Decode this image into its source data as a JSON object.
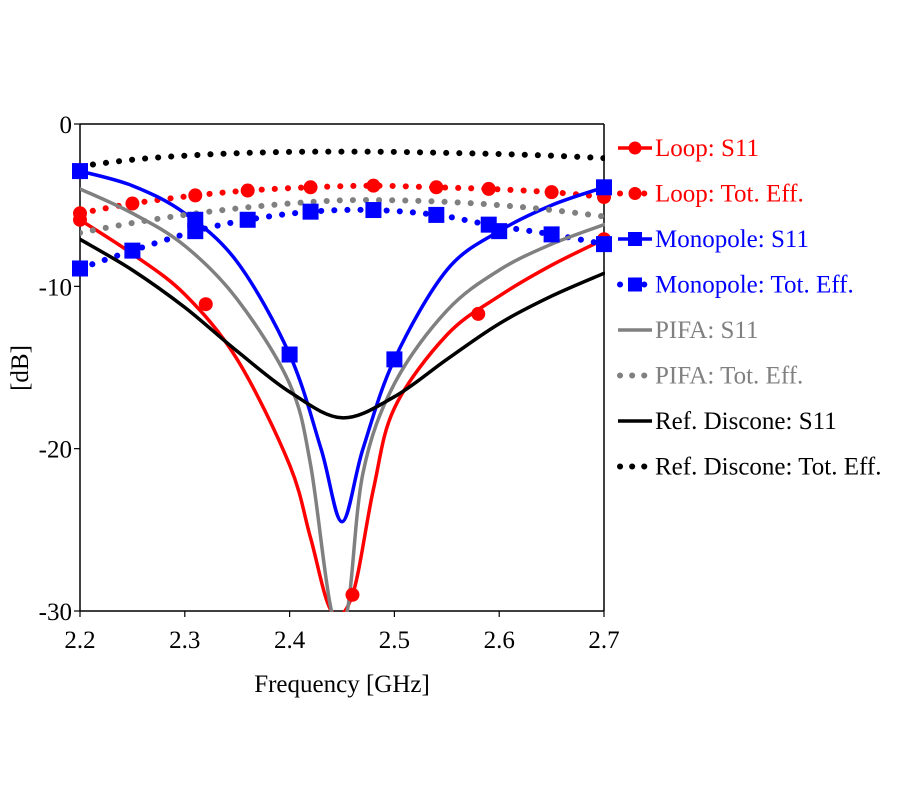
{
  "chart_data": {
    "type": "line",
    "title": "",
    "xlabel": "Frequency [GHz]",
    "ylabel": "[dB]",
    "xlim": [
      2.2,
      2.7
    ],
    "ylim": [
      -30,
      0
    ],
    "xticks": [
      "2.2",
      "2.3",
      "2.4",
      "2.5",
      "2.6",
      "2.7"
    ],
    "yticks": [
      "0",
      "-10",
      "-20",
      "-30"
    ],
    "grid": false,
    "legend_position": "right",
    "series": [
      {
        "name": "Loop: S11",
        "color": "#ff0000",
        "style": "solid",
        "marker": "circle",
        "x": [
          2.2,
          2.25,
          2.3,
          2.35,
          2.4,
          2.42,
          2.44,
          2.46,
          2.48,
          2.5,
          2.55,
          2.6,
          2.65,
          2.7
        ],
        "y": [
          -5.9,
          -8.0,
          -10.5,
          -14.5,
          -21.0,
          -25.5,
          -30.0,
          -29.0,
          -22.5,
          -17.5,
          -13.0,
          -10.6,
          -8.7,
          -7.1
        ],
        "marker_x": [
          2.2,
          2.32,
          2.46,
          2.58,
          2.7
        ],
        "marker_y": [
          -5.9,
          -11.1,
          -29.0,
          -11.7,
          -7.1
        ]
      },
      {
        "name": "Loop: Tot. Eff.",
        "color": "#ff0000",
        "style": "dotted",
        "marker": "circle",
        "x": [
          2.2,
          2.25,
          2.31,
          2.36,
          2.42,
          2.48,
          2.54,
          2.59,
          2.65,
          2.7
        ],
        "y": [
          -5.5,
          -4.9,
          -4.4,
          -4.1,
          -3.9,
          -3.8,
          -3.9,
          -4.0,
          -4.2,
          -4.5
        ],
        "marker_x": [
          2.2,
          2.25,
          2.31,
          2.36,
          2.42,
          2.48,
          2.54,
          2.59,
          2.65,
          2.7
        ],
        "marker_y": [
          -5.5,
          -4.9,
          -4.4,
          -4.1,
          -3.9,
          -3.8,
          -3.9,
          -4.0,
          -4.2,
          -4.5
        ]
      },
      {
        "name": "Monopole: S11",
        "color": "#0000ff",
        "style": "solid",
        "marker": "square",
        "x": [
          2.2,
          2.25,
          2.3,
          2.35,
          2.4,
          2.43,
          2.45,
          2.47,
          2.5,
          2.55,
          2.6,
          2.65,
          2.7
        ],
        "y": [
          -2.9,
          -3.8,
          -5.5,
          -8.5,
          -14.2,
          -20.0,
          -24.5,
          -20.0,
          -14.5,
          -9.0,
          -6.6,
          -5.0,
          -3.9
        ],
        "marker_x": [
          2.2,
          2.31,
          2.4,
          2.5,
          2.6,
          2.7
        ],
        "marker_y": [
          -2.9,
          -5.9,
          -14.2,
          -14.5,
          -6.6,
          -3.9
        ]
      },
      {
        "name": "Monopole: Tot. Eff.",
        "color": "#0000ff",
        "style": "dotted",
        "marker": "square",
        "x": [
          2.2,
          2.25,
          2.31,
          2.36,
          2.42,
          2.48,
          2.54,
          2.59,
          2.65,
          2.7
        ],
        "y": [
          -8.9,
          -7.8,
          -6.6,
          -5.9,
          -5.4,
          -5.3,
          -5.6,
          -6.2,
          -6.8,
          -7.4
        ],
        "marker_x": [
          2.2,
          2.25,
          2.31,
          2.36,
          2.42,
          2.48,
          2.54,
          2.59,
          2.65,
          2.7
        ],
        "marker_y": [
          -8.9,
          -7.8,
          -6.6,
          -5.9,
          -5.4,
          -5.3,
          -5.6,
          -6.2,
          -6.8,
          -7.4
        ]
      },
      {
        "name": "PIFA: S11",
        "color": "#808080",
        "style": "solid",
        "marker": "none",
        "x": [
          2.2,
          2.25,
          2.3,
          2.35,
          2.4,
          2.42,
          2.44,
          2.455,
          2.47,
          2.5,
          2.55,
          2.6,
          2.65,
          2.7
        ],
        "y": [
          -4.0,
          -5.5,
          -7.5,
          -10.8,
          -16.0,
          -21.0,
          -30.0,
          -30.0,
          -21.5,
          -16.0,
          -11.5,
          -9.0,
          -7.4,
          -6.2
        ],
        "marker_x": [],
        "marker_y": []
      },
      {
        "name": "PIFA: Tot. Eff.",
        "color": "#808080",
        "style": "dotted",
        "marker": "none",
        "x": [
          2.2,
          2.25,
          2.3,
          2.35,
          2.4,
          2.45,
          2.5,
          2.55,
          2.6,
          2.65,
          2.7
        ],
        "y": [
          -6.7,
          -6.1,
          -5.6,
          -5.2,
          -4.9,
          -4.7,
          -4.7,
          -4.8,
          -5.0,
          -5.3,
          -5.7
        ],
        "marker_x": [],
        "marker_y": []
      },
      {
        "name": "Ref. Discone: S11",
        "color": "#000000",
        "style": "solid",
        "marker": "none",
        "x": [
          2.2,
          2.25,
          2.3,
          2.35,
          2.4,
          2.45,
          2.5,
          2.55,
          2.6,
          2.65,
          2.7
        ],
        "y": [
          -7.1,
          -9.0,
          -11.3,
          -14.0,
          -16.5,
          -18.1,
          -16.8,
          -14.5,
          -12.3,
          -10.6,
          -9.2
        ],
        "marker_x": [],
        "marker_y": []
      },
      {
        "name": "Ref. Discone: Tot. Eff.",
        "color": "#000000",
        "style": "dotted",
        "marker": "none",
        "x": [
          2.2,
          2.25,
          2.3,
          2.35,
          2.4,
          2.45,
          2.5,
          2.55,
          2.6,
          2.65,
          2.7
        ],
        "y": [
          -2.6,
          -2.2,
          -1.95,
          -1.8,
          -1.72,
          -1.7,
          -1.72,
          -1.78,
          -1.85,
          -1.95,
          -2.1
        ],
        "marker_x": [],
        "marker_y": []
      }
    ]
  }
}
